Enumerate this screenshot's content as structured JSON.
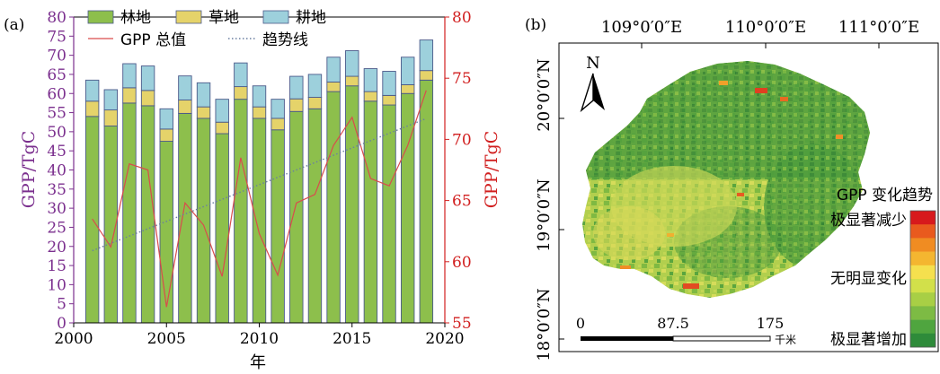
{
  "panel_a_label": "(a)",
  "panel_b_label": "(b)",
  "chart_data": {
    "type": "bar",
    "stacked": true,
    "x": [
      2001,
      2002,
      2003,
      2004,
      2005,
      2006,
      2007,
      2008,
      2009,
      2010,
      2011,
      2012,
      2013,
      2014,
      2015,
      2016,
      2017,
      2018,
      2019
    ],
    "series": [
      {
        "name": "林地",
        "color": "#8dbf4c",
        "values": [
          54.0,
          51.5,
          57.5,
          56.8,
          47.5,
          54.8,
          53.5,
          49.5,
          58.5,
          53.5,
          50.5,
          55.3,
          56.0,
          60.5,
          62.0,
          58.0,
          57.0,
          60.0,
          63.5
        ]
      },
      {
        "name": "草地",
        "color": "#e5d36a",
        "values": [
          4.0,
          4.2,
          4.0,
          4.0,
          3.2,
          3.5,
          3.0,
          3.0,
          3.3,
          3.0,
          3.0,
          3.3,
          3.0,
          2.5,
          2.5,
          2.5,
          2.5,
          2.3,
          2.5
        ]
      },
      {
        "name": "耕地",
        "color": "#9dd0dc",
        "values": [
          5.5,
          5.3,
          6.3,
          6.4,
          5.3,
          6.3,
          6.3,
          6.0,
          6.2,
          5.5,
          5.0,
          5.9,
          6.0,
          6.5,
          6.7,
          6.0,
          6.3,
          7.2,
          8.0
        ]
      },
      {
        "name": "GPP 总值",
        "type": "line",
        "axis": "right",
        "color": "#d94c4c",
        "values": [
          63.5,
          61.2,
          68.0,
          67.5,
          56.3,
          64.8,
          63.0,
          58.8,
          68.5,
          62.3,
          58.9,
          64.8,
          65.5,
          69.5,
          71.8,
          66.8,
          66.2,
          69.5,
          74.0
        ]
      },
      {
        "name": "趋势线",
        "type": "line",
        "axis": "right",
        "dashed": true,
        "color": "#6a7fa0",
        "values": [
          60.9,
          61.5,
          62.1,
          62.7,
          63.3,
          63.9,
          64.5,
          65.1,
          65.7,
          66.3,
          66.9,
          67.5,
          68.1,
          68.7,
          69.3,
          69.9,
          70.5,
          71.1,
          71.7
        ]
      }
    ],
    "xlabel": "年",
    "ylabel": "GPP/TgC",
    "y2label": "GPP/TgC",
    "ylim": [
      0,
      80
    ],
    "y2lim": [
      55,
      80
    ],
    "xlim": [
      2000,
      2020
    ],
    "xticks": [
      2000,
      2005,
      2010,
      2015,
      2020
    ],
    "yticks": [
      0,
      5,
      10,
      15,
      20,
      25,
      30,
      35,
      40,
      45,
      50,
      55,
      60,
      65,
      70,
      75,
      80
    ],
    "y2ticks": [
      55,
      60,
      65,
      70,
      75,
      80
    ],
    "left_axis_color": "#7b2f8e",
    "right_axis_color": "#d11f1f",
    "legend_placement": "top"
  },
  "map": {
    "lon_labels": [
      "109°0′0″E",
      "110°0′0″E",
      "111°0′0″E"
    ],
    "lat_labels": [
      "20°0′0″N",
      "19°0′0″N",
      "18°0′0″N"
    ],
    "north_label": "N",
    "scale_labels": [
      "0",
      "87.5",
      "175"
    ],
    "scale_unit": "千米",
    "legend_title": "GPP 变化趋势",
    "legend_top": "极显著减少",
    "legend_mid": "无明显变化",
    "legend_bottom": "极显著增加",
    "legend_colors": [
      "#d7191c",
      "#e95a1e",
      "#f08c22",
      "#f4b630",
      "#f5e04e",
      "#d2e04a",
      "#a8cf45",
      "#7dbb44",
      "#4fa53f",
      "#2e8b3a"
    ]
  }
}
